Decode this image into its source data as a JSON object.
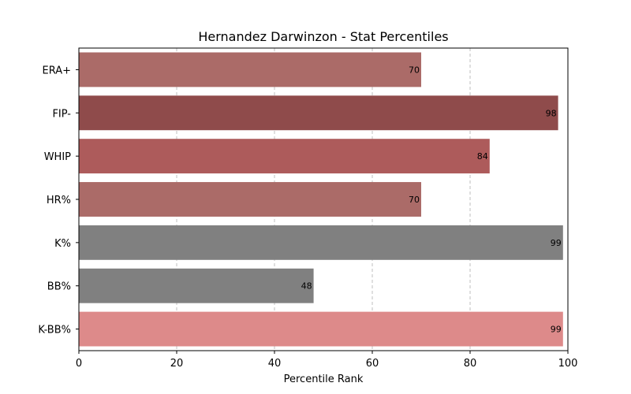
{
  "chart_data": {
    "type": "bar",
    "orientation": "horizontal",
    "title": "Hernandez Darwinzon - Stat Percentiles",
    "xlabel": "Percentile Rank",
    "ylabel": "",
    "xlim": [
      0,
      100
    ],
    "xticks": [
      0,
      20,
      40,
      60,
      80,
      100
    ],
    "grid": "x-dashed",
    "categories": [
      "ERA+",
      "FIP-",
      "WHIP",
      "HR%",
      "K%",
      "BB%",
      "K-BB%"
    ],
    "values": [
      70,
      98,
      84,
      70,
      99,
      48,
      99
    ],
    "colors": [
      "#ab6b68",
      "#8f4b4b",
      "#ad5b5b",
      "#ab6b68",
      "#808080",
      "#808080",
      "#dd8a8a"
    ]
  }
}
